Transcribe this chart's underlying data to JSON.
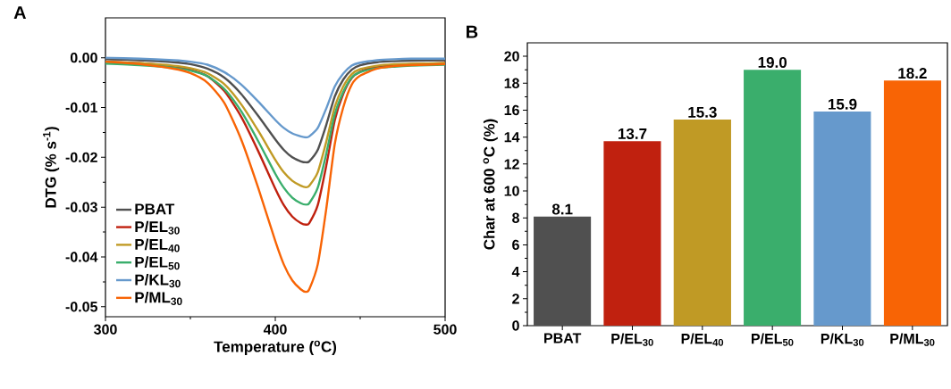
{
  "chart_data": [
    {
      "type": "line",
      "title": "A",
      "xlabel": "Temperature ($^{o}$C)",
      "ylabel": "DTG (% s$^{-1}$)",
      "x": [
        300,
        320,
        340,
        350,
        360,
        370,
        380,
        390,
        400,
        405,
        410,
        415,
        418,
        420,
        425,
        430,
        435,
        440,
        445,
        450,
        460,
        470,
        480,
        500
      ],
      "xlim": [
        300,
        500
      ],
      "xticks": [
        300,
        400,
        500
      ],
      "ylim": [
        -0.052,
        0.008
      ],
      "yticks": [
        {
          "value": -0.05,
          "label": "-0.05"
        },
        {
          "value": -0.04,
          "label": "-0.04"
        },
        {
          "value": -0.03,
          "label": "-0.03"
        },
        {
          "value": -0.02,
          "label": "-0.02"
        },
        {
          "value": -0.01,
          "label": "-0.01"
        },
        {
          "value": 0,
          "label": "0.00"
        }
      ],
      "legend": "bottom left",
      "grid": false,
      "marker": "none",
      "line_style": "solid",
      "series": [
        {
          "name": "PBAT",
          "color": "#505050",
          "values": [
            -0.0003,
            -0.0005,
            -0.0009,
            -0.0013,
            -0.0022,
            -0.004,
            -0.0073,
            -0.0117,
            -0.0164,
            -0.0185,
            -0.02,
            -0.0208,
            -0.021,
            -0.0208,
            -0.0185,
            -0.0135,
            -0.0078,
            -0.0044,
            -0.0024,
            -0.0015,
            -0.0009,
            -0.0007,
            -0.0006,
            -0.0005
          ]
        },
        {
          "name": "P/EL$_{30}$",
          "color": "#c0210f",
          "values": [
            -0.0008,
            -0.0011,
            -0.0018,
            -0.0024,
            -0.0037,
            -0.0067,
            -0.0119,
            -0.0188,
            -0.0263,
            -0.0296,
            -0.0319,
            -0.0332,
            -0.0335,
            -0.0332,
            -0.0296,
            -0.0217,
            -0.0126,
            -0.0073,
            -0.0041,
            -0.0028,
            -0.0018,
            -0.0015,
            -0.0013,
            -0.0011
          ]
        },
        {
          "name": "P/EL$_{40}$",
          "color": "#c09a25",
          "values": [
            -0.0008,
            -0.0011,
            -0.0016,
            -0.0021,
            -0.0031,
            -0.0053,
            -0.0094,
            -0.0147,
            -0.0205,
            -0.023,
            -0.0247,
            -0.0257,
            -0.026,
            -0.0257,
            -0.023,
            -0.0169,
            -0.0099,
            -0.0058,
            -0.0033,
            -0.0023,
            -0.0016,
            -0.0013,
            -0.0012,
            -0.0011
          ]
        },
        {
          "name": "P/EL$_{50}$",
          "color": "#3aae6c",
          "values": [
            -0.0012,
            -0.0015,
            -0.002,
            -0.0026,
            -0.0037,
            -0.0063,
            -0.0108,
            -0.0168,
            -0.0233,
            -0.0261,
            -0.0281,
            -0.0292,
            -0.0295,
            -0.0292,
            -0.0261,
            -0.0193,
            -0.0114,
            -0.0069,
            -0.004,
            -0.0029,
            -0.0021,
            -0.0018,
            -0.0016,
            -0.0014
          ]
        },
        {
          "name": "P/KL$_{30}$",
          "color": "#6699cc",
          "values": [
            0,
            -0.0002,
            -0.0005,
            -0.0008,
            -0.0014,
            -0.0029,
            -0.0054,
            -0.0088,
            -0.0125,
            -0.0141,
            -0.0152,
            -0.0158,
            -0.016,
            -0.0158,
            -0.0141,
            -0.0102,
            -0.0058,
            -0.0032,
            -0.0016,
            -0.001,
            -0.0005,
            -0.0003,
            -0.0002,
            -0.0002
          ]
        },
        {
          "name": "P/ML$_{30}$",
          "color": "#f86405",
          "values": [
            -0.0008,
            -0.0013,
            -0.0022,
            -0.0031,
            -0.005,
            -0.0091,
            -0.0165,
            -0.0262,
            -0.0368,
            -0.0415,
            -0.0447,
            -0.0465,
            -0.047,
            -0.0465,
            -0.0415,
            -0.0304,
            -0.0174,
            -0.01,
            -0.0054,
            -0.0036,
            -0.0022,
            -0.0017,
            -0.0015,
            -0.0013
          ]
        }
      ]
    },
    {
      "type": "bar",
      "title": "B",
      "ylabel": "Char at 600 $^{o}$C (%)",
      "categories": [
        "PBAT",
        "P/EL$_{30}$",
        "P/EL$_{40}$",
        "P/EL$_{50}$",
        "P/KL$_{30}$",
        "P/ML$_{30}$"
      ],
      "values": [
        8.1,
        13.7,
        15.3,
        19.0,
        15.9,
        18.2
      ],
      "colors": [
        "#505050",
        "#c0210f",
        "#c09a25",
        "#3aae6c",
        "#6699cc",
        "#f86405"
      ],
      "ylim": [
        0,
        21
      ],
      "yticks": [
        0,
        2,
        4,
        6,
        8,
        10,
        12,
        14,
        16,
        18,
        20
      ],
      "value_labels": [
        "8.1",
        "13.7",
        "15.3",
        "19.0",
        "15.9",
        "18.2"
      ],
      "grid": false
    }
  ]
}
